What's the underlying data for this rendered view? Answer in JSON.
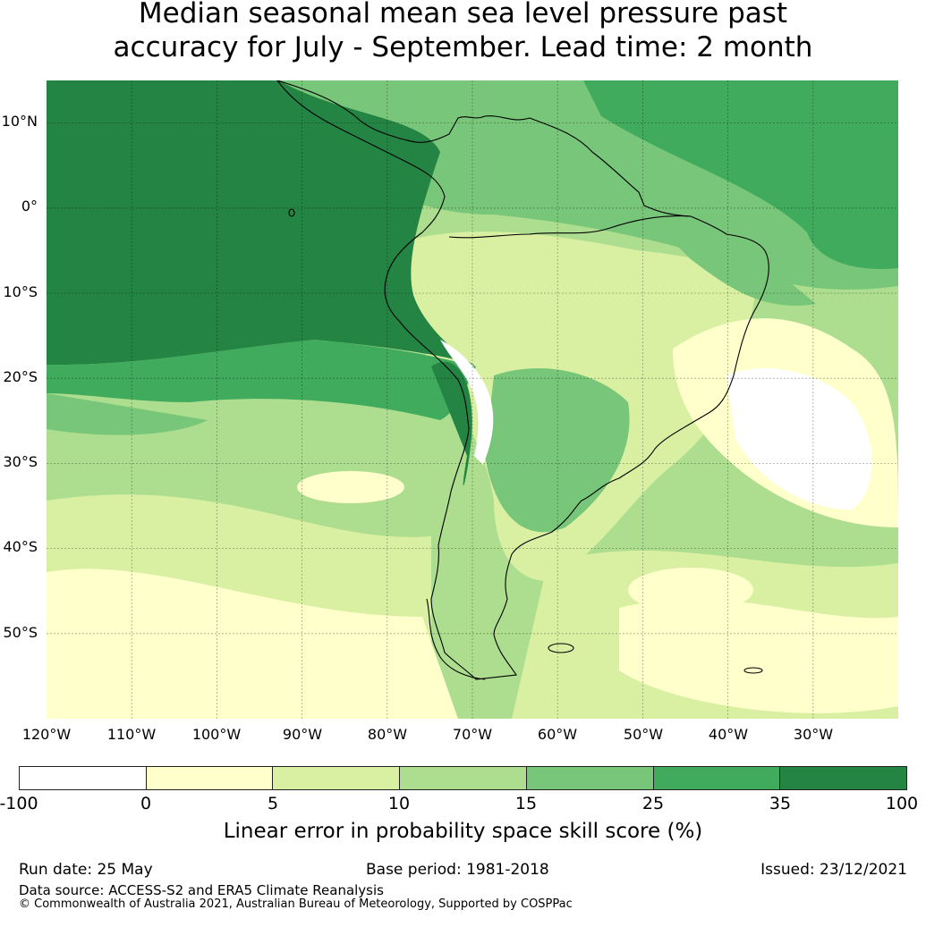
{
  "title": {
    "line1": "Median seasonal mean sea level pressure past",
    "line2": "accuracy for July - September. Lead time: 2 month"
  },
  "map": {
    "lat_labels": [
      "10°N",
      "0°",
      "10°S",
      "20°S",
      "30°S",
      "40°S",
      "50°S"
    ],
    "lon_labels": [
      "120°W",
      "110°W",
      "100°W",
      "90°W",
      "80°W",
      "70°W",
      "60°W",
      "50°W",
      "40°W",
      "30°W"
    ],
    "extent": {
      "lon_min": -120,
      "lon_max": -20,
      "lat_min": -60,
      "lat_max": 15
    },
    "gridlines": true
  },
  "colorbar": {
    "label": "Linear error in probability space skill score (%)",
    "ticks": [
      "-100",
      "0",
      "5",
      "10",
      "15",
      "25",
      "35",
      "100"
    ],
    "colors": [
      "#ffffff",
      "#ffffcc",
      "#d9f0a3",
      "#addd8e",
      "#78c679",
      "#41ab5d",
      "#238443"
    ]
  },
  "footer": {
    "run_date": "Run date: 25 May",
    "base_period": "Base period: 1981-2018",
    "issued": "Issued: 23/12/2021",
    "data_source": "Data source: ACCESS-S2 and ERA5 Climate Reanalysis",
    "copyright": "© Commonwealth of Australia 2021, Australian Bureau of Meteorology, Supported by COSPPac"
  }
}
